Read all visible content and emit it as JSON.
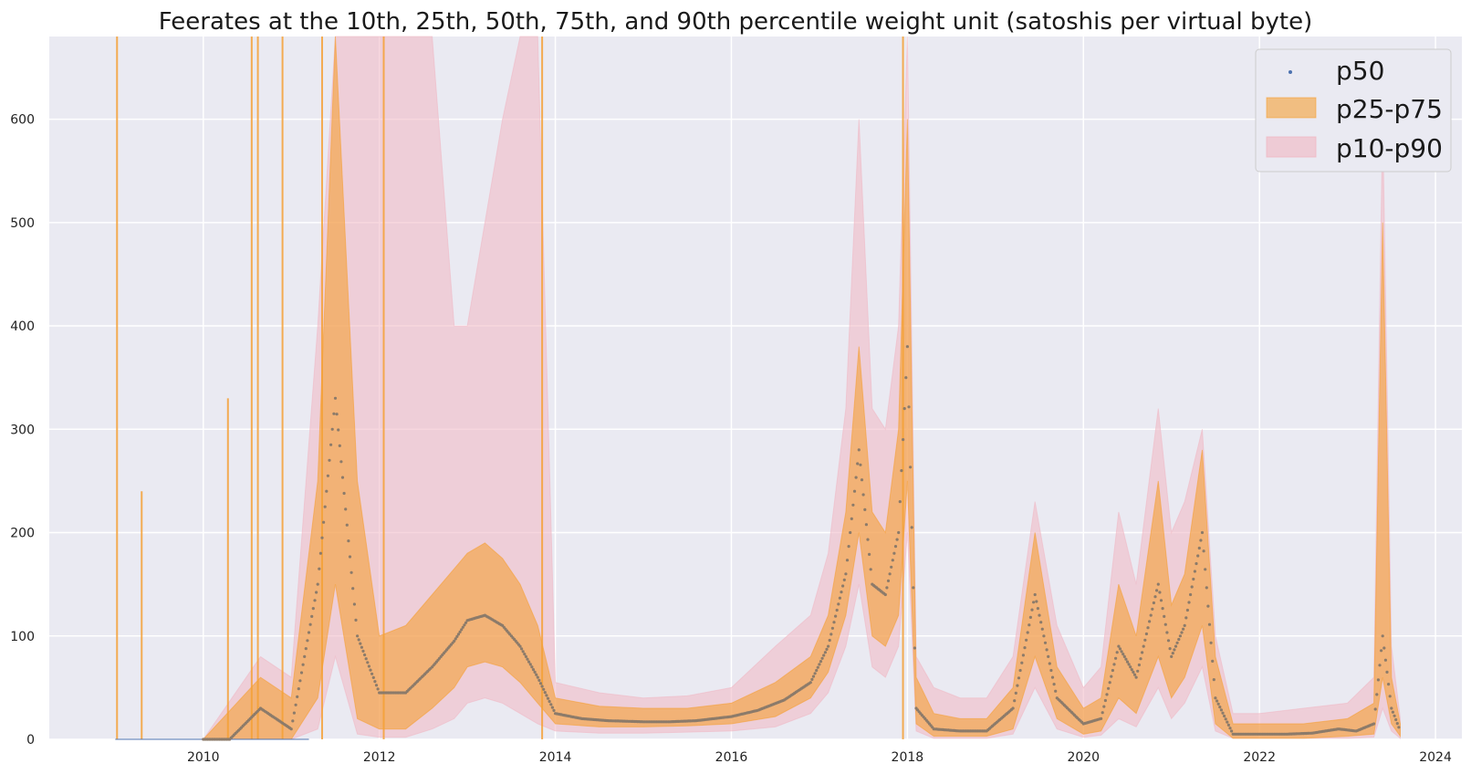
{
  "chart_data": {
    "type": "area",
    "title": "Feerates at the 10th, 25th, 50th, 75th, and 90th percentile weight unit (satoshis per virtual byte)",
    "xlabel": "",
    "ylabel": "",
    "xlim": [
      2008.25,
      2024.3
    ],
    "ylim": [
      0,
      680
    ],
    "x_ticks": [
      2010,
      2012,
      2014,
      2016,
      2018,
      2020,
      2022,
      2024
    ],
    "x_tick_labels": [
      "2010",
      "2012",
      "2014",
      "2016",
      "2018",
      "2020",
      "2022",
      "2024"
    ],
    "y_ticks": [
      0,
      100,
      200,
      300,
      400,
      500,
      600
    ],
    "y_tick_labels": [
      "0",
      "100",
      "200",
      "300",
      "400",
      "500",
      "600"
    ],
    "grid": true,
    "legend_position": "top-right",
    "legend": [
      {
        "label": "p50",
        "kind": "dot"
      },
      {
        "label": "p25-p75",
        "kind": "band"
      },
      {
        "label": "p10-p90",
        "kind": "band"
      }
    ],
    "colors": {
      "background": "#eaeaf2",
      "grid": "#ffffff",
      "p50": "#4c72b0",
      "p50_points": "#8c7b6a",
      "p25_p75": "#f5a035",
      "p10_p90": "#f0b6c2"
    },
    "series": [
      {
        "name": "p50",
        "x": [
          2010.0,
          2010.3,
          2010.65,
          2011.0,
          2011.3,
          2011.5,
          2011.75,
          2012.0,
          2012.3,
          2012.6,
          2012.85,
          2013.0,
          2013.2,
          2013.4,
          2013.6,
          2013.8,
          2014.0,
          2014.3,
          2014.6,
          2015.0,
          2015.3,
          2015.6,
          2016.0,
          2016.3,
          2016.6,
          2016.9,
          2017.1,
          2017.3,
          2017.45,
          2017.6,
          2017.75,
          2017.9,
          2018.0,
          2018.1,
          2018.3,
          2018.6,
          2018.9,
          2019.2,
          2019.45,
          2019.7,
          2020.0,
          2020.2,
          2020.4,
          2020.6,
          2020.85,
          2021.0,
          2021.15,
          2021.35,
          2021.5,
          2021.7,
          2022.0,
          2022.3,
          2022.6,
          2022.9,
          2023.1,
          2023.3,
          2023.4,
          2023.5,
          2023.6
        ],
        "values": [
          0,
          0,
          30,
          10,
          150,
          330,
          100,
          45,
          45,
          70,
          95,
          115,
          120,
          110,
          90,
          60,
          25,
          20,
          18,
          17,
          17,
          18,
          22,
          28,
          38,
          55,
          90,
          160,
          280,
          150,
          140,
          200,
          380,
          30,
          10,
          8,
          8,
          30,
          140,
          40,
          15,
          20,
          90,
          60,
          150,
          80,
          110,
          200,
          40,
          5,
          5,
          5,
          6,
          10,
          8,
          15,
          100,
          30,
          8
        ]
      },
      {
        "name": "p25-p75",
        "x": [
          2010.0,
          2010.65,
          2011.0,
          2011.3,
          2011.5,
          2011.75,
          2012.0,
          2012.3,
          2012.6,
          2012.85,
          2013.0,
          2013.2,
          2013.4,
          2013.6,
          2013.8,
          2014.0,
          2014.5,
          2015.0,
          2015.5,
          2016.0,
          2016.5,
          2016.9,
          2017.1,
          2017.3,
          2017.45,
          2017.6,
          2017.75,
          2017.9,
          2018.0,
          2018.1,
          2018.3,
          2018.6,
          2018.9,
          2019.2,
          2019.45,
          2019.7,
          2020.0,
          2020.2,
          2020.4,
          2020.6,
          2020.85,
          2021.0,
          2021.15,
          2021.35,
          2021.5,
          2021.7,
          2022.0,
          2022.5,
          2023.0,
          2023.3,
          2023.4,
          2023.5,
          2023.6
        ],
        "low": [
          0,
          0,
          0,
          40,
          150,
          20,
          10,
          10,
          30,
          50,
          70,
          75,
          70,
          55,
          35,
          15,
          12,
          12,
          13,
          15,
          22,
          40,
          65,
          120,
          200,
          100,
          90,
          120,
          250,
          15,
          3,
          3,
          3,
          10,
          80,
          20,
          5,
          8,
          40,
          25,
          80,
          40,
          60,
          110,
          15,
          1,
          1,
          1,
          3,
          5,
          60,
          15,
          3
        ],
        "high": [
          0,
          60,
          40,
          250,
          680,
          250,
          100,
          110,
          140,
          165,
          180,
          190,
          175,
          150,
          110,
          40,
          32,
          30,
          30,
          35,
          55,
          80,
          120,
          220,
          380,
          220,
          200,
          300,
          600,
          60,
          25,
          20,
          20,
          50,
          200,
          70,
          30,
          40,
          150,
          100,
          250,
          130,
          160,
          280,
          80,
          15,
          15,
          15,
          20,
          35,
          500,
          60,
          15
        ]
      },
      {
        "name": "p10-p90",
        "x": [
          2010.0,
          2010.65,
          2011.0,
          2011.3,
          2011.5,
          2011.75,
          2012.0,
          2012.3,
          2012.6,
          2012.85,
          2013.0,
          2013.2,
          2013.4,
          2013.6,
          2013.8,
          2014.0,
          2014.5,
          2015.0,
          2015.5,
          2016.0,
          2016.5,
          2016.9,
          2017.1,
          2017.3,
          2017.45,
          2017.6,
          2017.75,
          2017.9,
          2018.0,
          2018.1,
          2018.3,
          2018.6,
          2018.9,
          2019.2,
          2019.45,
          2019.7,
          2020.0,
          2020.2,
          2020.4,
          2020.6,
          2020.85,
          2021.0,
          2021.15,
          2021.35,
          2021.5,
          2021.7,
          2022.0,
          2022.5,
          2023.0,
          2023.3,
          2023.4,
          2023.5,
          2023.6
        ],
        "low": [
          0,
          0,
          0,
          10,
          80,
          5,
          2,
          2,
          10,
          20,
          35,
          40,
          35,
          25,
          15,
          8,
          6,
          6,
          7,
          8,
          12,
          25,
          45,
          90,
          150,
          70,
          60,
          90,
          200,
          8,
          1,
          1,
          1,
          5,
          50,
          10,
          2,
          4,
          20,
          12,
          50,
          20,
          35,
          70,
          8,
          1,
          1,
          1,
          1,
          2,
          30,
          8,
          1
        ],
        "high": [
          0,
          80,
          60,
          400,
          680,
          680,
          680,
          680,
          680,
          400,
          400,
          500,
          600,
          680,
          680,
          55,
          45,
          40,
          42,
          50,
          90,
          120,
          180,
          320,
          600,
          320,
          300,
          400,
          680,
          80,
          50,
          40,
          40,
          80,
          230,
          110,
          50,
          70,
          220,
          150,
          320,
          200,
          230,
          300,
          100,
          25,
          25,
          30,
          35,
          60,
          600,
          90,
          20
        ]
      }
    ],
    "spikes": [
      {
        "x": 2009.02,
        "value": 680
      },
      {
        "x": 2009.3,
        "value": 240
      },
      {
        "x": 2010.28,
        "value": 330
      },
      {
        "x": 2010.55,
        "value": 680
      },
      {
        "x": 2010.62,
        "value": 680
      },
      {
        "x": 2010.9,
        "value": 680
      },
      {
        "x": 2011.35,
        "value": 680
      },
      {
        "x": 2012.05,
        "value": 680
      },
      {
        "x": 2013.85,
        "value": 680
      },
      {
        "x": 2017.95,
        "value": 680
      }
    ]
  }
}
